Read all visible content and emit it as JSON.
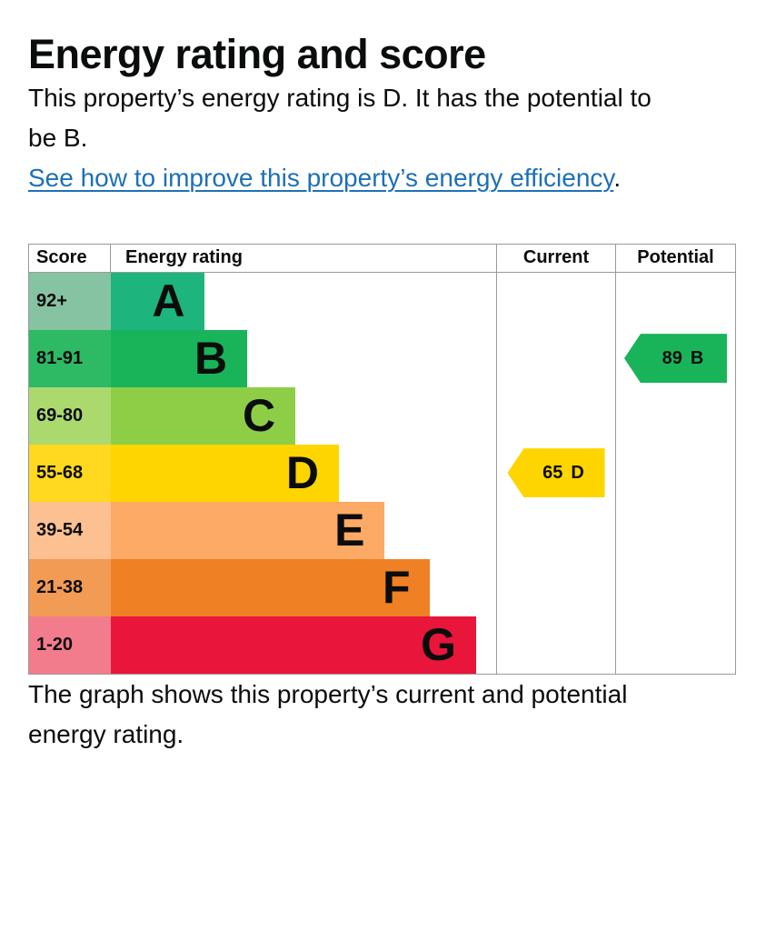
{
  "page": {
    "title": "Energy rating and score",
    "intro": "This property’s energy rating is D. It has the potential to be B.",
    "improve_link": "See how to improve this property’s energy efficiency",
    "improve_suffix": ".",
    "footer": "The graph shows this property’s current and potential energy rating."
  },
  "colors": {
    "text": "#0b0c0c",
    "link": "#1d70b8",
    "grid_line": "#9a9a9a"
  },
  "chart_data": {
    "type": "bar",
    "title": "Energy rating and score",
    "columns": [
      {
        "key": "score",
        "label": "Score"
      },
      {
        "key": "rating",
        "label": "Energy rating"
      },
      {
        "key": "current",
        "label": "Current"
      },
      {
        "key": "potential",
        "label": "Potential"
      }
    ],
    "bands": [
      {
        "letter": "A",
        "score_range": "92+",
        "bar_color": "#1eb47d",
        "score_bg": "#85c3a3",
        "width_pct": 24.4
      },
      {
        "letter": "B",
        "score_range": "81-91",
        "bar_color": "#19b459",
        "score_bg": "#2eb965",
        "width_pct": 35.4
      },
      {
        "letter": "C",
        "score_range": "69-80",
        "bar_color": "#8dce46",
        "score_bg": "#abd96e",
        "width_pct": 47.9
      },
      {
        "letter": "D",
        "score_range": "55-68",
        "bar_color": "#ffd500",
        "score_bg": "#ffd81f",
        "width_pct": 59.2
      },
      {
        "letter": "E",
        "score_range": "39-54",
        "bar_color": "#fcaa65",
        "score_bg": "#fcc091",
        "width_pct": 71.1
      },
      {
        "letter": "F",
        "score_range": "21-38",
        "bar_color": "#ef8023",
        "score_bg": "#f29b54",
        "width_pct": 82.9
      },
      {
        "letter": "G",
        "score_range": "1-20",
        "bar_color": "#e9153b",
        "score_bg": "#f27b8c",
        "width_pct": 94.8
      }
    ],
    "current": {
      "value": "65",
      "band": "D",
      "color": "#ffd500"
    },
    "potential": {
      "value": "89",
      "band": "B",
      "color": "#19b459"
    }
  }
}
